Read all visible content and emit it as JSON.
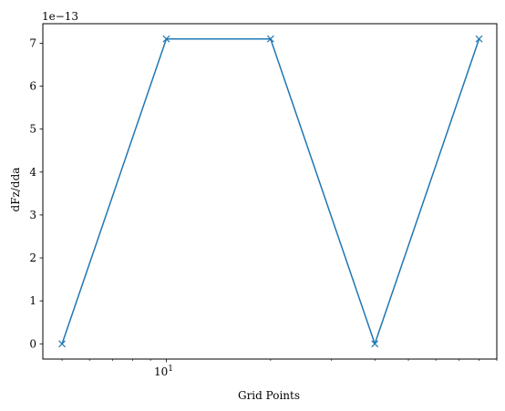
{
  "chart_data": {
    "type": "line",
    "x_scale": "log",
    "x": [
      5,
      10,
      20,
      40,
      80
    ],
    "series": [
      {
        "values": [
          0,
          7.1e-13,
          7.1e-13,
          0,
          7.1e-13
        ],
        "color": "#1f77b4",
        "marker": "x"
      }
    ],
    "xlabel": "Grid Points",
    "ylabel": "dFz/dda",
    "y_offset_text": "1e−13",
    "xlim": [
      4.4,
      90
    ],
    "ylim": [
      -3.55e-14,
      7.455e-13
    ],
    "x_major_ticks": [
      {
        "value": 10,
        "base": "10",
        "exp": "1"
      }
    ],
    "x_minor_ticks": [
      5,
      6,
      7,
      8,
      9,
      20,
      30,
      40,
      50,
      60,
      70,
      80,
      90
    ],
    "y_ticks": [
      {
        "value": 0,
        "label": "0"
      },
      {
        "value": 1e-13,
        "label": "1"
      },
      {
        "value": 2e-13,
        "label": "2"
      },
      {
        "value": 3e-13,
        "label": "3"
      },
      {
        "value": 4e-13,
        "label": "4"
      },
      {
        "value": 5e-13,
        "label": "5"
      },
      {
        "value": 6e-13,
        "label": "6"
      },
      {
        "value": 7e-13,
        "label": "7"
      }
    ],
    "grid": false,
    "legend": "none"
  }
}
